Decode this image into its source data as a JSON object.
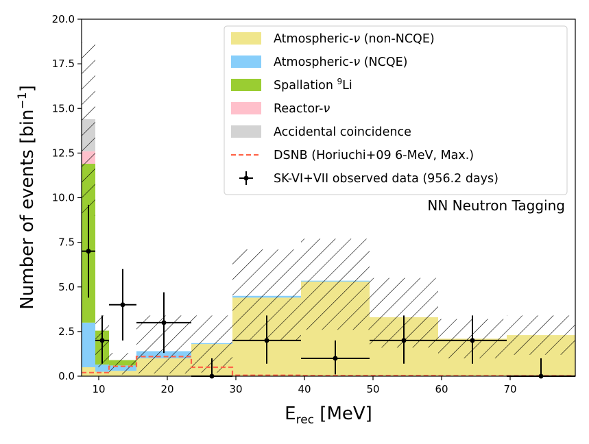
{
  "chart_data": {
    "type": "bar",
    "stacked": true,
    "xlabel_main": "E",
    "xlabel_sub": "rec",
    "xlabel_unit": " [MeV]",
    "ylabel_main": "Number of events [bin",
    "ylabel_sup": "−1",
    "ylabel_close": "]",
    "xlim": [
      7.5,
      79.5
    ],
    "ylim": [
      0,
      20
    ],
    "xticks": [
      {
        "value": 10,
        "label": "10"
      },
      {
        "value": 20,
        "label": "20"
      },
      {
        "value": 30,
        "label": "30"
      },
      {
        "value": 40,
        "label": "40"
      },
      {
        "value": 50,
        "label": "50"
      },
      {
        "value": 60,
        "label": "60"
      },
      {
        "value": 70,
        "label": "70"
      }
    ],
    "yticks": [
      {
        "value": 0,
        "label": "0.0"
      },
      {
        "value": 2.5,
        "label": "2.5"
      },
      {
        "value": 5,
        "label": "5.0"
      },
      {
        "value": 7.5,
        "label": "7.5"
      },
      {
        "value": 10,
        "label": "10.0"
      },
      {
        "value": 12.5,
        "label": "12.5"
      },
      {
        "value": 15,
        "label": "15.0"
      },
      {
        "value": 17.5,
        "label": "17.5"
      },
      {
        "value": 20,
        "label": "20.0"
      }
    ],
    "bin_edges": [
      7.5,
      9.5,
      11.5,
      15.5,
      23.5,
      29.5,
      39.5,
      49.5,
      59.5,
      69.5,
      79.5
    ],
    "series": [
      {
        "name_prefix": "Atmospheric-",
        "name_nu": "ν",
        "name_suffix": " (non-NCQE)",
        "color": "#f0e68c",
        "values": [
          0.5,
          0.25,
          0.3,
          1.0,
          1.8,
          4.4,
          5.3,
          3.3,
          2.1,
          2.3
        ]
      },
      {
        "name_prefix": "Atmospheric-",
        "name_nu": "ν",
        "name_suffix": " (NCQE)",
        "color": "#87cefa",
        "values": [
          2.5,
          0.4,
          0.3,
          0.4,
          0.05,
          0.1,
          0.05,
          0.0,
          0.0,
          0.0
        ]
      },
      {
        "name_prefix": "Spallation ",
        "name_sup": "9",
        "name_suffix": "Li",
        "color": "#9acd32",
        "values": [
          8.9,
          1.9,
          0.3,
          0.0,
          0.0,
          0.0,
          0.0,
          0.0,
          0.0,
          0.0
        ]
      },
      {
        "name_prefix": "Reactor-",
        "name_nu": "ν",
        "name_suffix": "",
        "color": "#ffc0cb",
        "values": [
          0.7,
          0.0,
          0.0,
          0.0,
          0.0,
          0.0,
          0.0,
          0.0,
          0.0,
          0.0
        ]
      },
      {
        "name_prefix": "Accidental coincidence",
        "name_suffix": "",
        "color": "#d3d3d3",
        "values": [
          1.8,
          0.0,
          0.0,
          0.0,
          0.0,
          0.0,
          0.0,
          0.0,
          0.0,
          0.0
        ]
      }
    ],
    "uncertainty_band": {
      "low": [
        9.0,
        0.5,
        0.1,
        0.15,
        0.2,
        2.0,
        2.6,
        1.6,
        1.0,
        1.2
      ],
      "high": [
        18.7,
        3.4,
        1.3,
        3.4,
        3.4,
        7.1,
        7.7,
        5.5,
        3.2,
        3.4
      ]
    },
    "dsnb": {
      "label": "DSNB (Horiuchi+09 6-MeV, Max.)",
      "color": "#ff6347",
      "values": [
        0.2,
        0.2,
        0.55,
        1.1,
        0.5,
        0.05,
        0.03,
        0.03,
        0.02,
        0.02
      ]
    },
    "observed": {
      "label": "SK-VI+VII observed data (956.2 days)",
      "points": [
        {
          "x": 8.5,
          "y": 7,
          "xerr": 1.0,
          "ylo": 4.4,
          "yhi": 9.6
        },
        {
          "x": 10.5,
          "y": 2,
          "xerr": 1.0,
          "ylo": 0.7,
          "yhi": 3.4
        },
        {
          "x": 13.5,
          "y": 4,
          "xerr": 2.0,
          "ylo": 2.0,
          "yhi": 6.0
        },
        {
          "x": 19.5,
          "y": 3,
          "xerr": 4.0,
          "ylo": 1.3,
          "yhi": 4.7
        },
        {
          "x": 26.5,
          "y": 0,
          "xerr": 3.0,
          "ylo": 0.0,
          "yhi": 1.0
        },
        {
          "x": 34.5,
          "y": 2,
          "xerr": 5.0,
          "ylo": 0.7,
          "yhi": 3.4
        },
        {
          "x": 44.5,
          "y": 1,
          "xerr": 5.0,
          "ylo": 0.1,
          "yhi": 2.0
        },
        {
          "x": 54.5,
          "y": 2,
          "xerr": 5.0,
          "ylo": 0.7,
          "yhi": 3.4
        },
        {
          "x": 64.5,
          "y": 2,
          "xerr": 5.0,
          "ylo": 0.7,
          "yhi": 3.4
        },
        {
          "x": 74.5,
          "y": 0,
          "xerr": 5.0,
          "ylo": 0.0,
          "yhi": 1.0
        }
      ]
    },
    "annotation": "NN Neutron Tagging",
    "legend_position": "top-right"
  }
}
